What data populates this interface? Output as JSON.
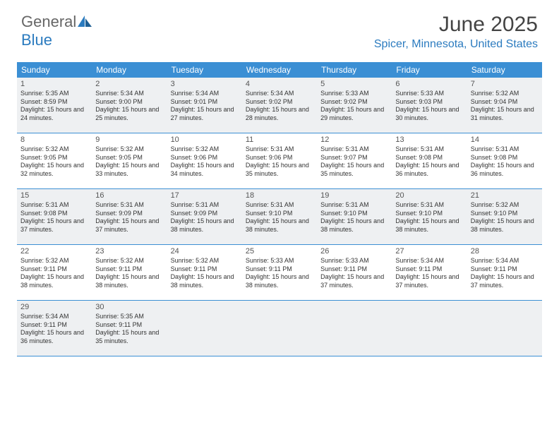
{
  "brand": {
    "part1": "General",
    "part2": "Blue"
  },
  "title": "June 2025",
  "location": "Spicer, Minnesota, United States",
  "colors": {
    "headerBg": "#3b8fd4",
    "accent": "#2b7bbf",
    "shaded": "#eef0f2",
    "text": "#333333"
  },
  "dayNames": [
    "Sunday",
    "Monday",
    "Tuesday",
    "Wednesday",
    "Thursday",
    "Friday",
    "Saturday"
  ],
  "weeks": [
    {
      "shaded": true,
      "cells": [
        {
          "n": "1",
          "sr": "5:35 AM",
          "ss": "8:59 PM",
          "dl": "15 hours and 24 minutes."
        },
        {
          "n": "2",
          "sr": "5:34 AM",
          "ss": "9:00 PM",
          "dl": "15 hours and 25 minutes."
        },
        {
          "n": "3",
          "sr": "5:34 AM",
          "ss": "9:01 PM",
          "dl": "15 hours and 27 minutes."
        },
        {
          "n": "4",
          "sr": "5:34 AM",
          "ss": "9:02 PM",
          "dl": "15 hours and 28 minutes."
        },
        {
          "n": "5",
          "sr": "5:33 AM",
          "ss": "9:02 PM",
          "dl": "15 hours and 29 minutes."
        },
        {
          "n": "6",
          "sr": "5:33 AM",
          "ss": "9:03 PM",
          "dl": "15 hours and 30 minutes."
        },
        {
          "n": "7",
          "sr": "5:32 AM",
          "ss": "9:04 PM",
          "dl": "15 hours and 31 minutes."
        }
      ]
    },
    {
      "shaded": false,
      "cells": [
        {
          "n": "8",
          "sr": "5:32 AM",
          "ss": "9:05 PM",
          "dl": "15 hours and 32 minutes."
        },
        {
          "n": "9",
          "sr": "5:32 AM",
          "ss": "9:05 PM",
          "dl": "15 hours and 33 minutes."
        },
        {
          "n": "10",
          "sr": "5:32 AM",
          "ss": "9:06 PM",
          "dl": "15 hours and 34 minutes."
        },
        {
          "n": "11",
          "sr": "5:31 AM",
          "ss": "9:06 PM",
          "dl": "15 hours and 35 minutes."
        },
        {
          "n": "12",
          "sr": "5:31 AM",
          "ss": "9:07 PM",
          "dl": "15 hours and 35 minutes."
        },
        {
          "n": "13",
          "sr": "5:31 AM",
          "ss": "9:08 PM",
          "dl": "15 hours and 36 minutes."
        },
        {
          "n": "14",
          "sr": "5:31 AM",
          "ss": "9:08 PM",
          "dl": "15 hours and 36 minutes."
        }
      ]
    },
    {
      "shaded": true,
      "cells": [
        {
          "n": "15",
          "sr": "5:31 AM",
          "ss": "9:08 PM",
          "dl": "15 hours and 37 minutes."
        },
        {
          "n": "16",
          "sr": "5:31 AM",
          "ss": "9:09 PM",
          "dl": "15 hours and 37 minutes."
        },
        {
          "n": "17",
          "sr": "5:31 AM",
          "ss": "9:09 PM",
          "dl": "15 hours and 38 minutes."
        },
        {
          "n": "18",
          "sr": "5:31 AM",
          "ss": "9:10 PM",
          "dl": "15 hours and 38 minutes."
        },
        {
          "n": "19",
          "sr": "5:31 AM",
          "ss": "9:10 PM",
          "dl": "15 hours and 38 minutes."
        },
        {
          "n": "20",
          "sr": "5:31 AM",
          "ss": "9:10 PM",
          "dl": "15 hours and 38 minutes."
        },
        {
          "n": "21",
          "sr": "5:32 AM",
          "ss": "9:10 PM",
          "dl": "15 hours and 38 minutes."
        }
      ]
    },
    {
      "shaded": false,
      "cells": [
        {
          "n": "22",
          "sr": "5:32 AM",
          "ss": "9:11 PM",
          "dl": "15 hours and 38 minutes."
        },
        {
          "n": "23",
          "sr": "5:32 AM",
          "ss": "9:11 PM",
          "dl": "15 hours and 38 minutes."
        },
        {
          "n": "24",
          "sr": "5:32 AM",
          "ss": "9:11 PM",
          "dl": "15 hours and 38 minutes."
        },
        {
          "n": "25",
          "sr": "5:33 AM",
          "ss": "9:11 PM",
          "dl": "15 hours and 38 minutes."
        },
        {
          "n": "26",
          "sr": "5:33 AM",
          "ss": "9:11 PM",
          "dl": "15 hours and 37 minutes."
        },
        {
          "n": "27",
          "sr": "5:34 AM",
          "ss": "9:11 PM",
          "dl": "15 hours and 37 minutes."
        },
        {
          "n": "28",
          "sr": "5:34 AM",
          "ss": "9:11 PM",
          "dl": "15 hours and 37 minutes."
        }
      ]
    },
    {
      "shaded": true,
      "cells": [
        {
          "n": "29",
          "sr": "5:34 AM",
          "ss": "9:11 PM",
          "dl": "15 hours and 36 minutes."
        },
        {
          "n": "30",
          "sr": "5:35 AM",
          "ss": "9:11 PM",
          "dl": "15 hours and 35 minutes."
        },
        null,
        null,
        null,
        null,
        null
      ]
    }
  ],
  "labels": {
    "sunrise": "Sunrise:",
    "sunset": "Sunset:",
    "daylight": "Daylight:"
  }
}
